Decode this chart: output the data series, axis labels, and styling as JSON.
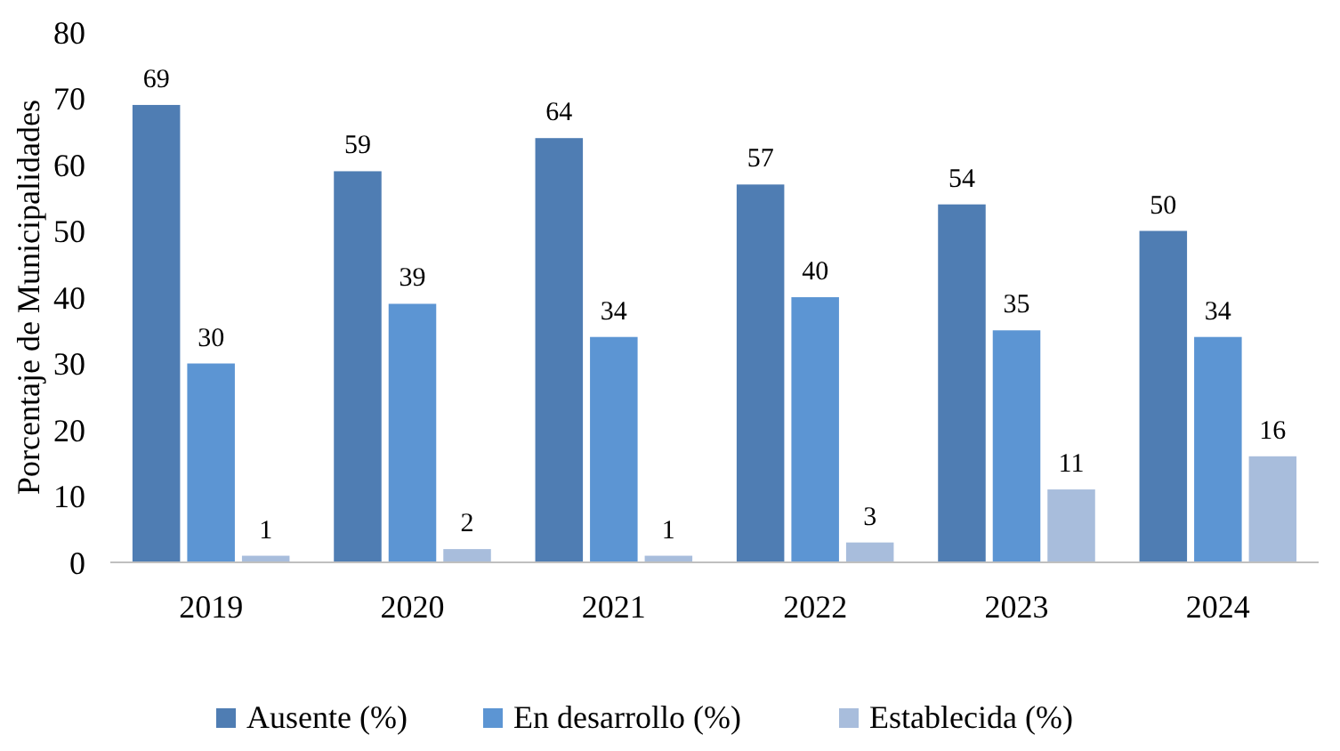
{
  "chart_data": {
    "type": "bar",
    "ylabel": "Porcentaje de Municipalidades",
    "categories": [
      "2019",
      "2020",
      "2021",
      "2022",
      "2023",
      "2024"
    ],
    "series": [
      {
        "name": "Ausente (%)",
        "color": "#4f7db3",
        "values": [
          69,
          59,
          64,
          57,
          54,
          50
        ]
      },
      {
        "name": "En desarrollo (%)",
        "color": "#5c95d3",
        "values": [
          30,
          39,
          34,
          40,
          35,
          34
        ]
      },
      {
        "name": "Establecida (%)",
        "color": "#a8bddc",
        "values": [
          1,
          2,
          1,
          3,
          11,
          16
        ]
      }
    ],
    "ylim": [
      0,
      80
    ],
    "yticks": [
      0,
      10,
      20,
      30,
      40,
      50,
      60,
      70,
      80
    ],
    "data_labels": true,
    "legend": "bottom",
    "grid": false
  }
}
